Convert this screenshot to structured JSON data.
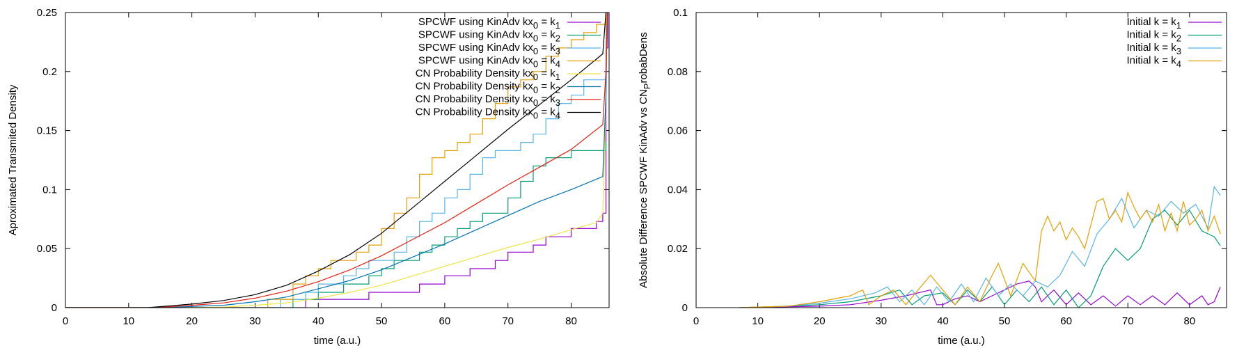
{
  "chart_data": [
    {
      "type": "line",
      "xlabel": "time (a.u.)",
      "ylabel": "Aproximated Transmited Density",
      "xlim": [
        0,
        86
      ],
      "ylim": [
        0,
        0.25
      ],
      "xticks": [
        0,
        10,
        20,
        30,
        40,
        50,
        60,
        70,
        80
      ],
      "xtick_labels": [
        "0",
        "10",
        "20",
        "30",
        "40",
        "50",
        "60",
        "70",
        "80"
      ],
      "yticks": [
        0,
        0.05,
        0.1,
        0.15,
        0.2,
        0.25
      ],
      "ytick_labels": [
        "0",
        "0.05",
        "0.1",
        "0.15",
        "0.2",
        "0.25"
      ],
      "grid": false,
      "legend_position": "top-right",
      "series": [
        {
          "name": "SPCWF using KinAdv kx0 = k1",
          "legend_prefix": "SPCWF using KinAdv kx",
          "legend_sub1": "0",
          "legend_mid": " = k",
          "legend_sub2": "1",
          "color": "#9400d3",
          "step": true,
          "x": [
            0,
            36,
            38,
            44,
            46,
            48,
            54,
            56,
            58,
            60,
            62,
            64,
            66,
            68,
            70,
            72,
            74,
            76,
            78,
            80,
            82,
            84,
            85,
            85.5,
            85.8
          ],
          "y": [
            0,
            0,
            0.007,
            0.007,
            0.007,
            0.013,
            0.013,
            0.02,
            0.02,
            0.027,
            0.027,
            0.033,
            0.033,
            0.04,
            0.047,
            0.047,
            0.053,
            0.06,
            0.06,
            0.067,
            0.067,
            0.073,
            0.08,
            0.22,
            0.25
          ]
        },
        {
          "name": "SPCWF using KinAdv kx0 = k2",
          "legend_prefix": "SPCWF using KinAdv kx",
          "legend_sub1": "0",
          "legend_mid": " = k",
          "legend_sub2": "2",
          "color": "#009e73",
          "step": true,
          "x": [
            0,
            33,
            36,
            40,
            44,
            48,
            50,
            52,
            54,
            56,
            58,
            60,
            62,
            64,
            66,
            68,
            70,
            72,
            74,
            76,
            78,
            80,
            84,
            85.5
          ],
          "y": [
            0,
            0,
            0.007,
            0.013,
            0.02,
            0.027,
            0.033,
            0.04,
            0.04,
            0.047,
            0.053,
            0.06,
            0.067,
            0.073,
            0.08,
            0.08,
            0.093,
            0.107,
            0.12,
            0.127,
            0.127,
            0.133,
            0.133,
            0.14
          ]
        },
        {
          "name": "SPCWF using KinAdv kx0 = k3",
          "legend_prefix": "SPCWF using KinAdv kx",
          "legend_sub1": "0",
          "legend_mid": " = k",
          "legend_sub2": "3",
          "color": "#56b4e9",
          "step": true,
          "x": [
            0,
            31,
            34,
            38,
            40,
            42,
            44,
            46,
            48,
            50,
            52,
            54,
            56,
            58,
            60,
            62,
            64,
            66,
            68,
            70,
            72,
            74,
            76,
            78,
            80,
            82,
            84,
            85.5
          ],
          "y": [
            0,
            0,
            0.007,
            0.013,
            0.02,
            0.02,
            0.027,
            0.033,
            0.04,
            0.04,
            0.047,
            0.06,
            0.073,
            0.08,
            0.093,
            0.1,
            0.113,
            0.127,
            0.133,
            0.133,
            0.14,
            0.147,
            0.16,
            0.173,
            0.18,
            0.193,
            0.193,
            0.25
          ]
        },
        {
          "name": "SPCWF using KinAdv kx0 = k4",
          "legend_prefix": "SPCWF using KinAdv kx",
          "legend_sub1": "0",
          "legend_mid": " = k",
          "legend_sub2": "4",
          "color": "#e69f00",
          "step": true,
          "x": [
            0,
            28,
            32,
            36,
            38,
            40,
            42,
            44,
            46,
            48,
            50,
            52,
            54,
            56,
            58,
            60,
            62,
            64,
            66,
            68,
            70,
            72,
            74,
            76,
            78,
            80,
            82,
            84,
            85.5
          ],
          "y": [
            0,
            0,
            0.007,
            0.02,
            0.027,
            0.033,
            0.04,
            0.04,
            0.047,
            0.053,
            0.067,
            0.08,
            0.093,
            0.113,
            0.127,
            0.133,
            0.14,
            0.147,
            0.16,
            0.173,
            0.187,
            0.193,
            0.2,
            0.213,
            0.22,
            0.227,
            0.233,
            0.24,
            0.25
          ]
        },
        {
          "name": "CN Probability Density kx0 = k1",
          "legend_prefix": "CN Probability Density kx",
          "legend_sub1": "0",
          "legend_mid": " = k",
          "legend_sub2": "1",
          "color": "#f0e442",
          "step": false,
          "x": [
            0,
            20,
            25,
            30,
            35,
            40,
            45,
            50,
            55,
            60,
            65,
            70,
            75,
            80,
            84,
            85,
            85.4,
            85.6
          ],
          "y": [
            0,
            0,
            0.0005,
            0.002,
            0.004,
            0.008,
            0.013,
            0.019,
            0.027,
            0.035,
            0.043,
            0.051,
            0.058,
            0.066,
            0.072,
            0.08,
            0.15,
            0.25
          ]
        },
        {
          "name": "CN Probability Density kx0 = k2",
          "legend_prefix": "CN Probability Density kx",
          "legend_sub1": "0",
          "legend_mid": " = k",
          "legend_sub2": "2",
          "color": "#0072b2",
          "step": false,
          "x": [
            0,
            15,
            20,
            25,
            30,
            35,
            40,
            45,
            50,
            55,
            60,
            65,
            70,
            75,
            80,
            85,
            85.5,
            85.7
          ],
          "y": [
            0,
            0,
            0.001,
            0.002,
            0.005,
            0.009,
            0.016,
            0.023,
            0.032,
            0.043,
            0.054,
            0.066,
            0.078,
            0.09,
            0.1,
            0.111,
            0.18,
            0.25
          ]
        },
        {
          "name": "CN Probability Density kx0 = k3",
          "legend_prefix": "CN Probability Density kx",
          "legend_sub1": "0",
          "legend_mid": " = k",
          "legend_sub2": "3",
          "color": "#e51e10",
          "step": false,
          "x": [
            0,
            14,
            20,
            25,
            30,
            35,
            40,
            45,
            50,
            55,
            60,
            65,
            70,
            75,
            80,
            85,
            85.5,
            85.7
          ],
          "y": [
            0,
            0,
            0.002,
            0.004,
            0.008,
            0.014,
            0.022,
            0.032,
            0.044,
            0.058,
            0.072,
            0.088,
            0.104,
            0.119,
            0.134,
            0.155,
            0.2,
            0.25
          ]
        },
        {
          "name": "CN Probability Density kx0 = k4",
          "legend_prefix": "CN Probability Density kx",
          "legend_sub1": "0",
          "legend_mid": " = k",
          "legend_sub2": "4",
          "color": "#000000",
          "step": false,
          "x": [
            0,
            13,
            20,
            25,
            30,
            35,
            40,
            45,
            50,
            55,
            60,
            65,
            70,
            75,
            80,
            85,
            85.5
          ],
          "y": [
            0,
            0,
            0.003,
            0.006,
            0.011,
            0.019,
            0.031,
            0.045,
            0.063,
            0.085,
            0.107,
            0.129,
            0.151,
            0.172,
            0.193,
            0.215,
            0.25
          ]
        }
      ]
    },
    {
      "type": "line",
      "xlabel": "time (a.u.)",
      "ylabel_main": "Absolute Difference SPCWF KinAdv vs CN",
      "ylabel_sub": "P",
      "ylabel_tail": "robabDens",
      "xlim": [
        0,
        86
      ],
      "ylim": [
        0,
        0.1
      ],
      "xticks": [
        0,
        10,
        20,
        30,
        40,
        50,
        60,
        70,
        80
      ],
      "xtick_labels": [
        "0",
        "10",
        "20",
        "30",
        "40",
        "50",
        "60",
        "70",
        "80"
      ],
      "yticks": [
        0,
        0.02,
        0.04,
        0.06,
        0.08,
        0.1
      ],
      "ytick_labels": [
        "0",
        "0.02",
        "0.04",
        "0.06",
        "0.08",
        "0.1"
      ],
      "grid": false,
      "legend_position": "top-right",
      "series": [
        {
          "name": "Initial k = k1",
          "legend_prefix": "Initial k = k",
          "legend_sub1": "1",
          "color": "#9400d3",
          "x": [
            7,
            20,
            25,
            30,
            34,
            36,
            38,
            39,
            40,
            42,
            44,
            46,
            48,
            50,
            52,
            54,
            55,
            56,
            57,
            58,
            60,
            62,
            64,
            66,
            68,
            70,
            72,
            74,
            76,
            78,
            80,
            82,
            83,
            84,
            85
          ],
          "y": [
            0,
            0.0005,
            0.001,
            0.0025,
            0.004,
            0.005,
            0.006,
            0.001,
            0.001,
            0.003,
            0.004,
            0.002,
            0.004,
            0.006,
            0.008,
            0.009,
            0.007,
            0.002,
            0.004,
            0.006,
            0.001,
            0.005,
            0.001,
            0.004,
            0.0005,
            0.004,
            0.001,
            0.004,
            0.001,
            0.005,
            0.001,
            0.004,
            0.001,
            0.002,
            0.007
          ]
        },
        {
          "name": "Initial k = k2",
          "legend_prefix": "Initial k = k",
          "legend_sub1": "2",
          "color": "#009e73",
          "x": [
            7,
            15,
            20,
            25,
            30,
            33,
            35,
            37,
            40,
            42,
            44,
            46,
            48,
            50,
            52,
            54,
            56,
            58,
            60,
            62,
            64,
            66,
            68,
            70,
            72,
            74,
            76,
            78,
            80,
            82,
            84,
            85
          ],
          "y": [
            0,
            0.0005,
            0.001,
            0.002,
            0.004,
            0.006,
            0.001,
            0.004,
            0.005,
            0.001,
            0.006,
            0.002,
            0.007,
            0.001,
            0.006,
            0.002,
            0.007,
            0.001,
            0.006,
            0.0,
            0.004,
            0.014,
            0.02,
            0.016,
            0.02,
            0.03,
            0.033,
            0.028,
            0.033,
            0.026,
            0.024,
            0.021
          ]
        },
        {
          "name": "Initial k = k3",
          "legend_prefix": "Initial k = k",
          "legend_sub1": "3",
          "color": "#56b4e9",
          "x": [
            7,
            15,
            20,
            25,
            29,
            31,
            33,
            35,
            37,
            39,
            41,
            43,
            45,
            47,
            49,
            51,
            53,
            55,
            57,
            59,
            61,
            63,
            65,
            67,
            69,
            71,
            73,
            75,
            77,
            79,
            81,
            83,
            84,
            85
          ],
          "y": [
            0,
            0.0005,
            0.0015,
            0.003,
            0.005,
            0.007,
            0.002,
            0.006,
            0.001,
            0.007,
            0.002,
            0.008,
            0.002,
            0.01,
            0.004,
            0.008,
            0.004,
            0.009,
            0.007,
            0.011,
            0.019,
            0.014,
            0.025,
            0.03,
            0.037,
            0.027,
            0.033,
            0.031,
            0.036,
            0.032,
            0.035,
            0.027,
            0.041,
            0.038
          ]
        },
        {
          "name": "Initial k = k4",
          "legend_prefix": "Initial k = k",
          "legend_sub1": "4",
          "color": "#e69f00",
          "x": [
            7,
            15,
            20,
            25,
            27,
            28,
            30,
            32,
            34,
            36,
            38,
            40,
            42,
            44,
            46,
            48,
            49,
            51,
            53,
            55,
            56,
            57,
            58,
            59,
            60,
            61,
            62,
            63,
            65,
            66,
            67,
            68,
            69,
            70,
            71,
            72,
            73,
            74,
            75,
            76,
            77,
            78,
            79,
            80,
            81,
            82,
            83,
            84,
            85
          ],
          "y": [
            0,
            0.0005,
            0.002,
            0.004,
            0.006,
            0.001,
            0.004,
            0.006,
            0.001,
            0.006,
            0.011,
            0.006,
            0.001,
            0.007,
            0.002,
            0.011,
            0.015,
            0.004,
            0.015,
            0.009,
            0.026,
            0.031,
            0.026,
            0.029,
            0.023,
            0.027,
            0.024,
            0.02,
            0.036,
            0.037,
            0.03,
            0.033,
            0.029,
            0.039,
            0.034,
            0.03,
            0.033,
            0.029,
            0.035,
            0.026,
            0.032,
            0.026,
            0.036,
            0.028,
            0.03,
            0.033,
            0.026,
            0.031,
            0.025
          ]
        }
      ]
    }
  ]
}
